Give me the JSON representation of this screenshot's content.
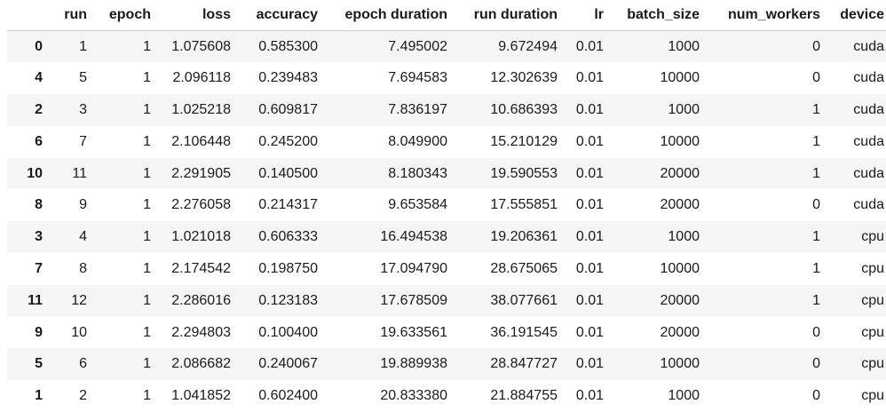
{
  "table": {
    "columns": [
      "",
      "run",
      "epoch",
      "loss",
      "accuracy",
      "epoch duration",
      "run duration",
      "lr",
      "batch_size",
      "num_workers",
      "device"
    ],
    "rows": [
      {
        "index": "0",
        "cells": [
          "1",
          "1",
          "1.075608",
          "0.585300",
          "7.495002",
          "9.672494",
          "0.01",
          "1000",
          "0",
          "cuda"
        ]
      },
      {
        "index": "4",
        "cells": [
          "5",
          "1",
          "2.096118",
          "0.239483",
          "7.694583",
          "12.302639",
          "0.01",
          "10000",
          "0",
          "cuda"
        ]
      },
      {
        "index": "2",
        "cells": [
          "3",
          "1",
          "1.025218",
          "0.609817",
          "7.836197",
          "10.686393",
          "0.01",
          "1000",
          "1",
          "cuda"
        ]
      },
      {
        "index": "6",
        "cells": [
          "7",
          "1",
          "2.106448",
          "0.245200",
          "8.049900",
          "15.210129",
          "0.01",
          "10000",
          "1",
          "cuda"
        ]
      },
      {
        "index": "10",
        "cells": [
          "11",
          "1",
          "2.291905",
          "0.140500",
          "8.180343",
          "19.590553",
          "0.01",
          "20000",
          "1",
          "cuda"
        ]
      },
      {
        "index": "8",
        "cells": [
          "9",
          "1",
          "2.276058",
          "0.214317",
          "9.653584",
          "17.555851",
          "0.01",
          "20000",
          "0",
          "cuda"
        ]
      },
      {
        "index": "3",
        "cells": [
          "4",
          "1",
          "1.021018",
          "0.606333",
          "16.494538",
          "19.206361",
          "0.01",
          "1000",
          "1",
          "cpu"
        ]
      },
      {
        "index": "7",
        "cells": [
          "8",
          "1",
          "2.174542",
          "0.198750",
          "17.094790",
          "28.675065",
          "0.01",
          "10000",
          "1",
          "cpu"
        ]
      },
      {
        "index": "11",
        "cells": [
          "12",
          "1",
          "2.286016",
          "0.123183",
          "17.678509",
          "38.077661",
          "0.01",
          "20000",
          "1",
          "cpu"
        ]
      },
      {
        "index": "9",
        "cells": [
          "10",
          "1",
          "2.294803",
          "0.100400",
          "19.633561",
          "36.191545",
          "0.01",
          "20000",
          "0",
          "cpu"
        ]
      },
      {
        "index": "5",
        "cells": [
          "6",
          "1",
          "2.086682",
          "0.240067",
          "19.889938",
          "28.847727",
          "0.01",
          "10000",
          "0",
          "cpu"
        ]
      },
      {
        "index": "1",
        "cells": [
          "2",
          "1",
          "1.041852",
          "0.602400",
          "20.833380",
          "21.884755",
          "0.01",
          "1000",
          "0",
          "cpu"
        ]
      }
    ]
  },
  "colors": {
    "stripe": "#f5f5f5",
    "text": "#1a1a1a",
    "header_rule": "#cfcfcf"
  }
}
